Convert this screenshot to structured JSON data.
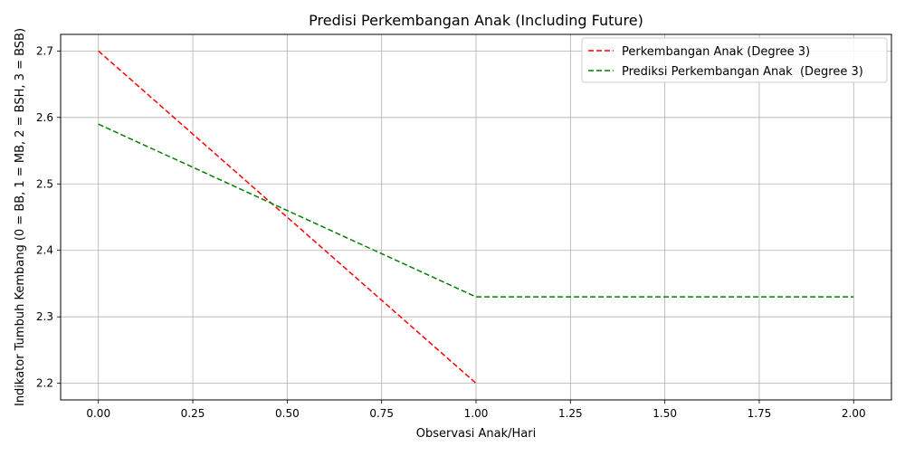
{
  "chart_data": {
    "type": "line",
    "title": "Predisi Perkembangan Anak (Including Future)",
    "xlabel": "Observasi Anak/Hari",
    "ylabel": "Indikator Tumbuh Kembang (0 = BB, 1 = MB, 2 = BSH, 3 = BSB)",
    "xlim": [
      -0.1,
      2.1
    ],
    "ylim": [
      2.175,
      2.725
    ],
    "xticks": [
      "0.00",
      "0.25",
      "0.50",
      "0.75",
      "1.00",
      "1.25",
      "1.50",
      "1.75",
      "2.00"
    ],
    "yticks": [
      "2.2",
      "2.3",
      "2.4",
      "2.5",
      "2.6",
      "2.7"
    ],
    "grid": true,
    "legend_position": "top-right",
    "series": [
      {
        "name": "Perkembangan Anak (Degree 3)",
        "color": "#ff0000",
        "linestyle": "dashed",
        "x": [
          0,
          1
        ],
        "y": [
          2.7,
          2.2
        ]
      },
      {
        "name": "Prediksi Perkembangan Anak  (Degree 3)",
        "color": "#008000",
        "linestyle": "dashed",
        "x": [
          0,
          1,
          2
        ],
        "y": [
          2.59,
          2.33,
          2.33
        ]
      }
    ]
  }
}
